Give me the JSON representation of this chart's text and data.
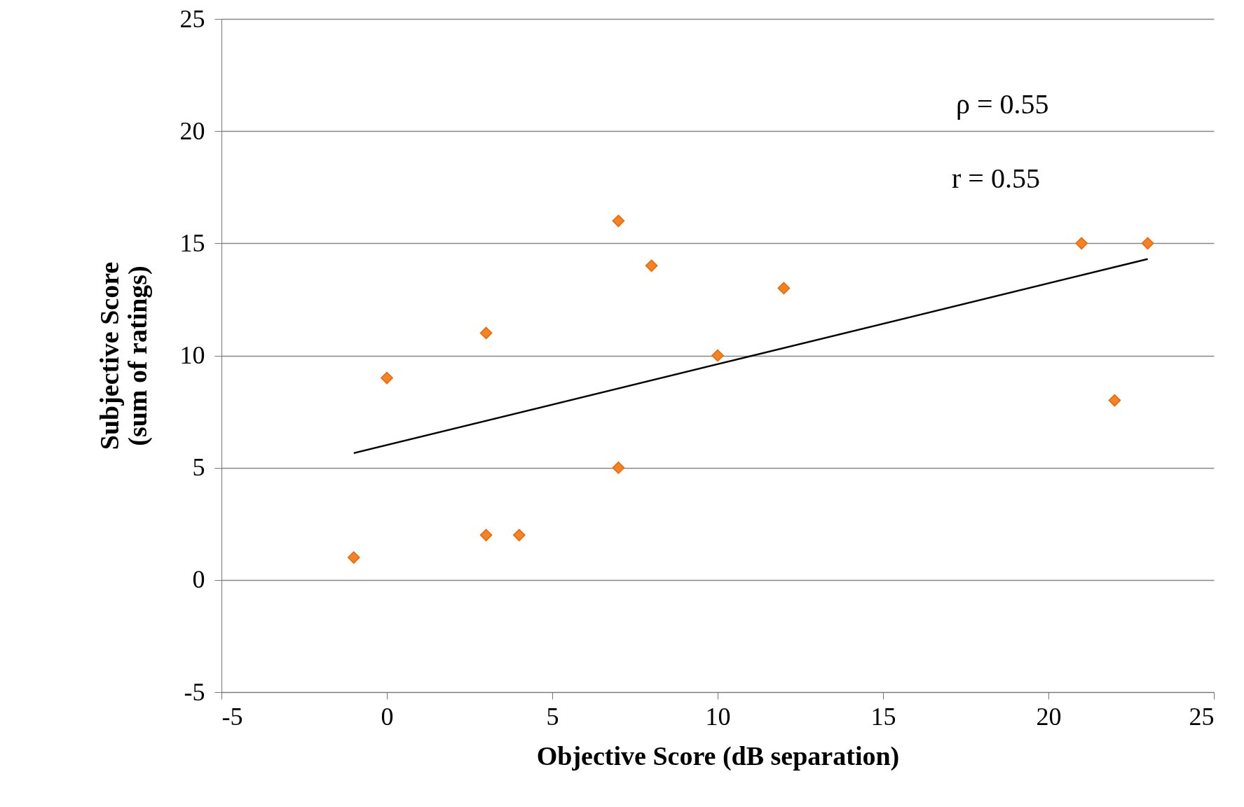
{
  "chart_data": {
    "type": "scatter",
    "xlabel": "Objective Score (dB separation)",
    "ylabel": "Subjective Score\n(sum of ratings)",
    "xlim": [
      -5,
      25
    ],
    "xticks": [
      -5,
      0,
      5,
      10,
      15,
      20,
      25
    ],
    "ylim": [
      -5,
      25
    ],
    "yticks": [
      -5,
      0,
      5,
      10,
      15,
      20,
      25
    ],
    "grid": "y",
    "series": [
      {
        "marker": "diamond",
        "color": "#f7821f",
        "x": [
          -1,
          0,
          3,
          3,
          4,
          7,
          7,
          8,
          10,
          12,
          21,
          22,
          23
        ],
        "values": [
          1,
          9,
          11,
          2,
          2,
          16,
          5,
          14,
          10,
          13,
          15,
          8,
          15
        ]
      },
      {
        "type": "line",
        "marker": "none",
        "color": "#000000",
        "x": [
          -1,
          23
        ],
        "values": [
          5.65,
          14.3
        ]
      }
    ],
    "annotations": [
      "ρ = 0.55",
      "r = 0.55"
    ]
  }
}
